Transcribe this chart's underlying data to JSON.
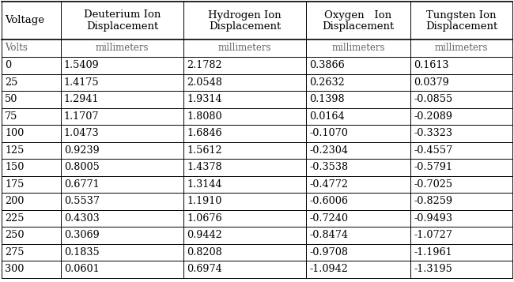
{
  "col_headers_line1": [
    "Voltage",
    "Deuterium Ion",
    "Hydrogen Ion",
    "Oxygen   Ion",
    "Tungsten Ion"
  ],
  "col_headers_line2": [
    "",
    "Displacement",
    "Displacement",
    "Displacement",
    "Displacement"
  ],
  "unit_row": [
    "Volts",
    "millimeters",
    "millimeters",
    "millimeters",
    "millimeters"
  ],
  "rows": [
    [
      "0",
      "1.5409",
      "2.1782",
      "0.3866",
      "0.1613"
    ],
    [
      "25",
      "1.4175",
      "2.0548",
      "0.2632",
      "0.0379"
    ],
    [
      "50",
      "1.2941",
      "1.9314",
      "0.1398",
      "-0.0855"
    ],
    [
      "75",
      "1.1707",
      "1.8080",
      "0.0164",
      "-0.2089"
    ],
    [
      "100",
      "1.0473",
      "1.6846",
      "-0.1070",
      "-0.3323"
    ],
    [
      "125",
      "0.9239",
      "1.5612",
      "-0.2304",
      "-0.4557"
    ],
    [
      "150",
      "0.8005",
      "1.4378",
      "-0.3538",
      "-0.5791"
    ],
    [
      "175",
      "0.6771",
      "1.3144",
      "-0.4772",
      "-0.7025"
    ],
    [
      "200",
      "0.5537",
      "1.1910",
      "-0.6006",
      "-0.8259"
    ],
    [
      "225",
      "0.4303",
      "1.0676",
      "-0.7240",
      "-0.9493"
    ],
    [
      "250",
      "0.3069",
      "0.9442",
      "-0.8474",
      "-1.0727"
    ],
    [
      "275",
      "0.1835",
      "0.8208",
      "-0.9708",
      "-1.1961"
    ],
    [
      "300",
      "0.0601",
      "0.6974",
      "-1.0942",
      "-1.3195"
    ]
  ],
  "bg_color": "#ffffff",
  "line_color": "#000000",
  "text_color": "#000000",
  "unit_color": "#666666",
  "header_fontsize": 9.5,
  "unit_fontsize": 8.5,
  "data_fontsize": 9.2
}
